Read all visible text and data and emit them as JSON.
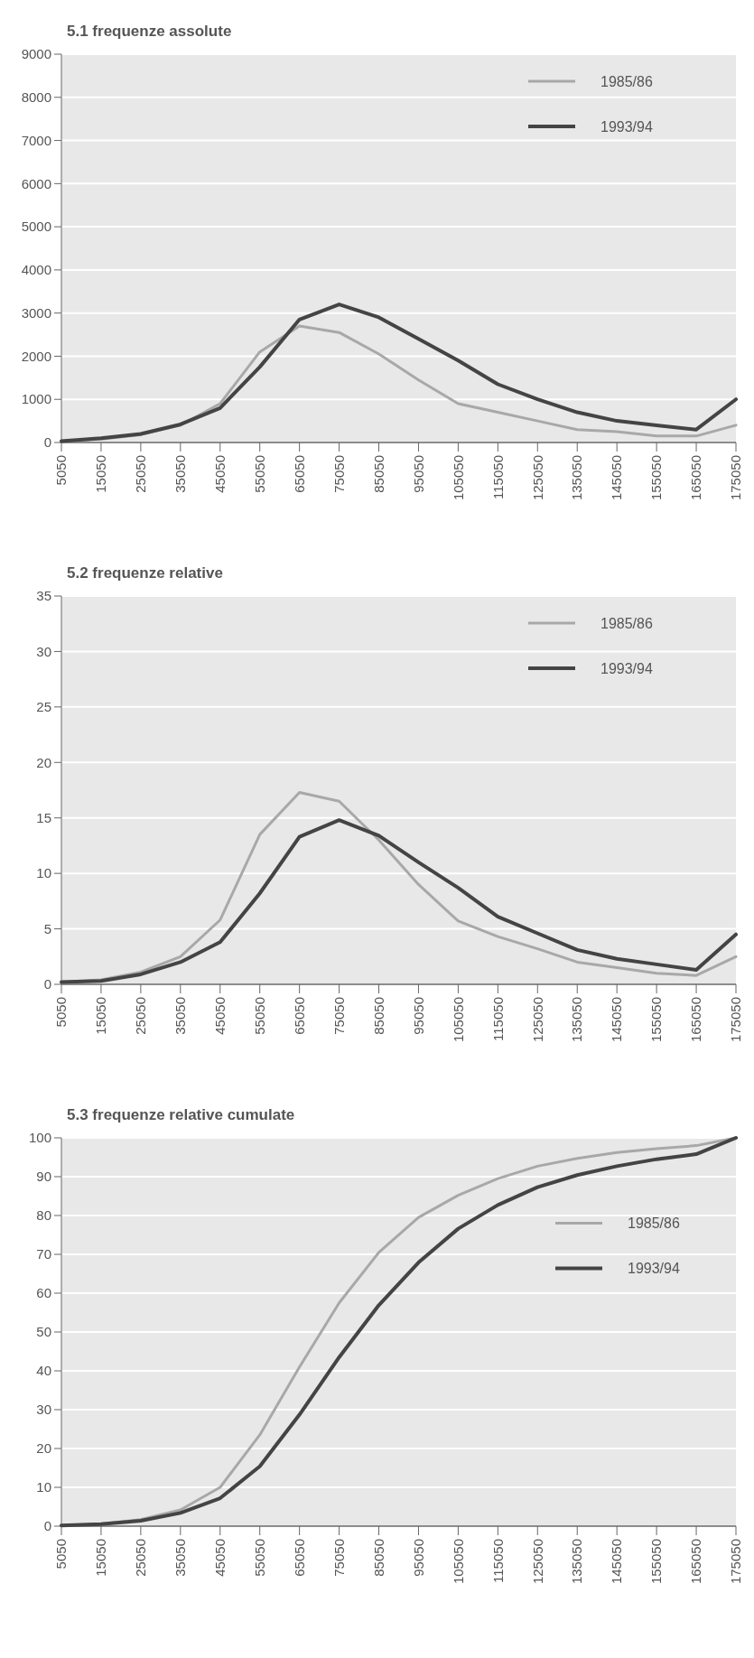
{
  "chart_data": [
    {
      "type": "line",
      "title": "5.1 frequenze assolute",
      "categories": [
        "5050",
        "15050",
        "25050",
        "35050",
        "45050",
        "55050",
        "65050",
        "75050",
        "85050",
        "95050",
        "105050",
        "115050",
        "125050",
        "135050",
        "145050",
        "155050",
        "165050",
        "175050"
      ],
      "series": [
        {
          "name": "1985/86",
          "color": "#a8a8a8",
          "values": [
            30,
            80,
            180,
            400,
            900,
            2100,
            2700,
            2550,
            2050,
            1450,
            900,
            700,
            500,
            300,
            250,
            150,
            150,
            400
          ]
        },
        {
          "name": "1993/94",
          "color": "#444444",
          "values": [
            30,
            100,
            200,
            420,
            800,
            1750,
            2850,
            3200,
            2900,
            2400,
            1900,
            1350,
            1000,
            700,
            500,
            400,
            300,
            1000
          ]
        }
      ],
      "ylim": [
        0,
        9000
      ],
      "yticks": [
        0,
        1000,
        2000,
        3000,
        4000,
        5000,
        6000,
        7000,
        8000,
        9000
      ],
      "grid": "y",
      "legend": "top right"
    },
    {
      "type": "line",
      "title": "5.2 frequenze relative",
      "categories": [
        "5050",
        "15050",
        "25050",
        "35050",
        "45050",
        "55050",
        "65050",
        "75050",
        "85050",
        "95050",
        "105050",
        "115050",
        "125050",
        "135050",
        "145050",
        "155050",
        "165050",
        "175050"
      ],
      "series": [
        {
          "name": "1985/86",
          "color": "#a8a8a8",
          "values": [
            0.2,
            0.4,
            1.1,
            2.5,
            5.8,
            13.5,
            17.3,
            16.5,
            13,
            9,
            5.7,
            4.3,
            3.2,
            2,
            1.5,
            1,
            0.8,
            2.5
          ]
        },
        {
          "name": "1993/94",
          "color": "#444444",
          "values": [
            0.2,
            0.3,
            0.9,
            2,
            3.8,
            8.2,
            13.3,
            14.8,
            13.4,
            11,
            8.7,
            6.1,
            4.6,
            3.1,
            2.3,
            1.8,
            1.3,
            4.5
          ]
        }
      ],
      "ylim": [
        0,
        35
      ],
      "yticks": [
        0,
        5,
        10,
        15,
        20,
        25,
        30,
        35
      ],
      "grid": "y",
      "legend": "top right"
    },
    {
      "type": "line",
      "title": "5.3 frequenze relative cumulate",
      "categories": [
        "5050",
        "15050",
        "25050",
        "35050",
        "45050",
        "55050",
        "65050",
        "75050",
        "85050",
        "95050",
        "105050",
        "115050",
        "125050",
        "135050",
        "145050",
        "155050",
        "165050",
        "175050"
      ],
      "series": [
        {
          "name": "1985/86",
          "color": "#a8a8a8",
          "values": [
            0.2,
            0.6,
            1.7,
            4.2,
            10,
            23.5,
            41,
            57.5,
            70.5,
            79.5,
            85.2,
            89.5,
            92.7,
            94.7,
            96.2,
            97.2,
            98,
            100
          ]
        },
        {
          "name": "1993/94",
          "color": "#444444",
          "values": [
            0.2,
            0.5,
            1.4,
            3.4,
            7.2,
            15.4,
            28.7,
            43.5,
            56.9,
            67.9,
            76.6,
            82.7,
            87.3,
            90.4,
            92.7,
            94.5,
            95.8,
            100
          ]
        }
      ],
      "ylim": [
        0,
        100
      ],
      "yticks": [
        0,
        10,
        20,
        30,
        40,
        50,
        60,
        70,
        80,
        90,
        100
      ],
      "grid": "y",
      "legend": "right"
    }
  ]
}
